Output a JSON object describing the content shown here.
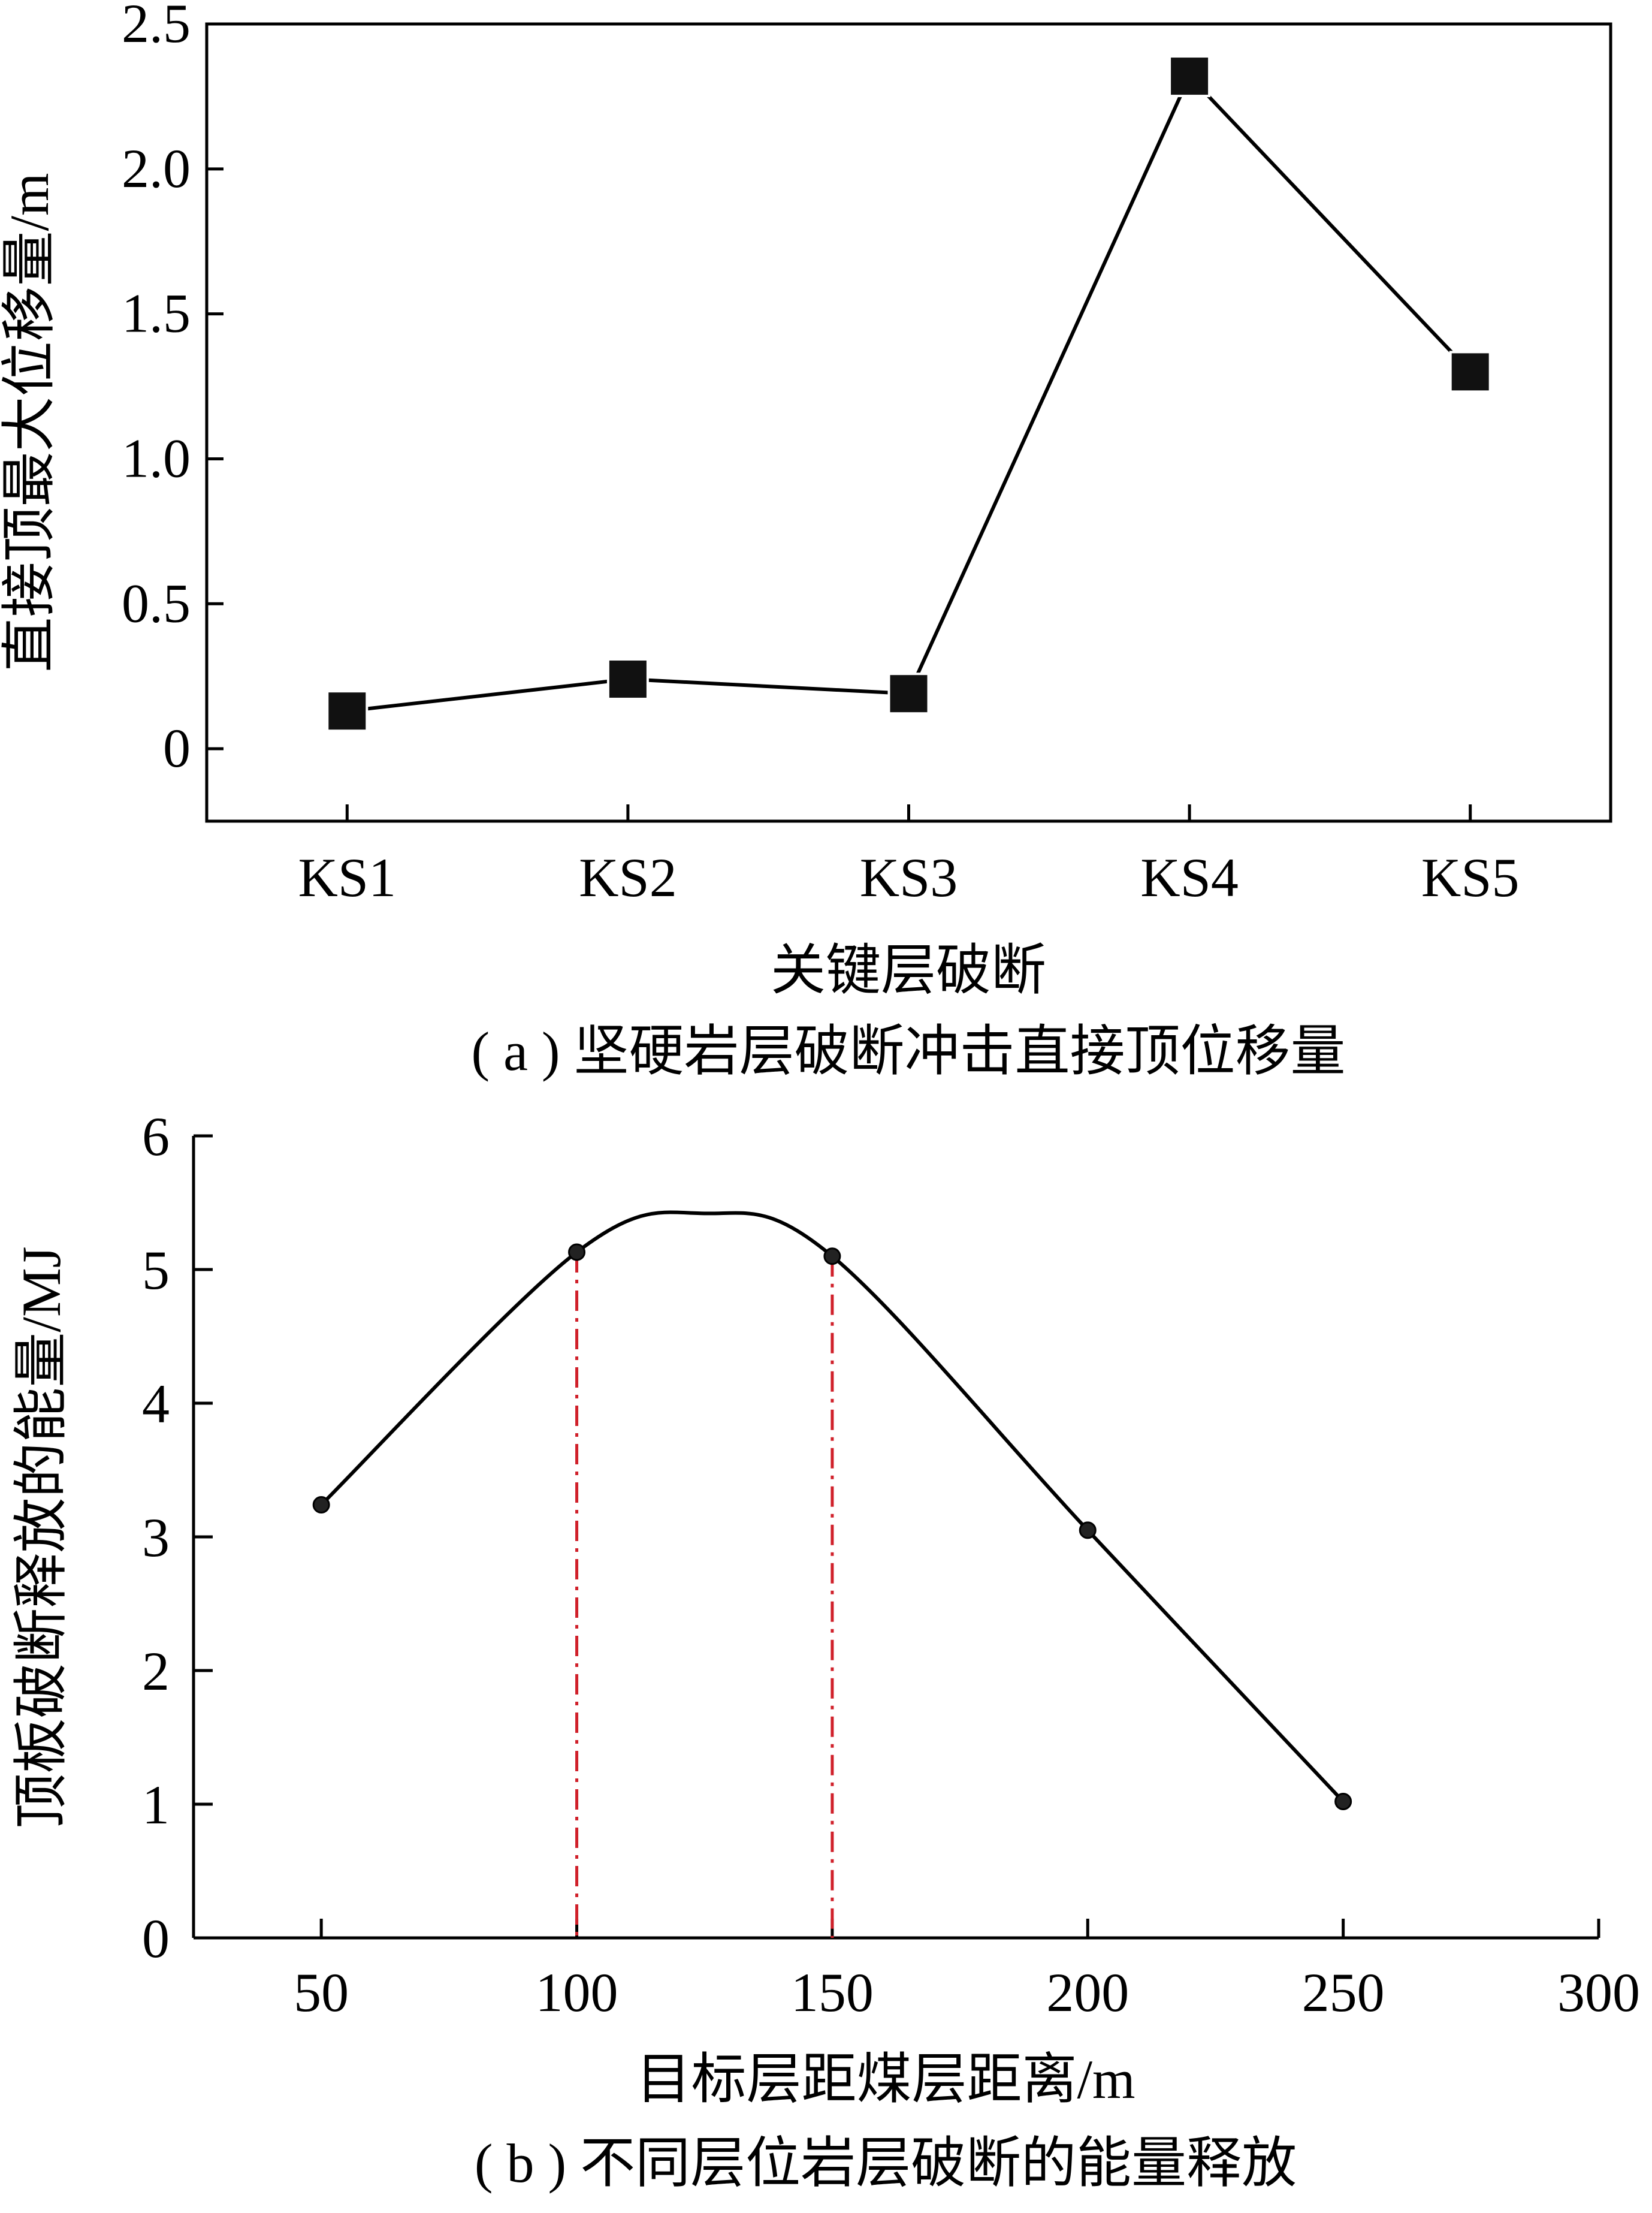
{
  "chart_data": [
    {
      "type": "line",
      "categories": [
        "KS1",
        "KS2",
        "KS3",
        "KS4",
        "KS5"
      ],
      "series": [
        {
          "values": [
            0.13,
            0.24,
            0.19,
            2.32,
            1.3
          ]
        }
      ],
      "xlabel": "关键层破断",
      "ylabel": "直接顶最大位移量/m",
      "ylim": [
        -0.25,
        2.5
      ],
      "yticks": [
        0,
        0.5,
        1.0,
        1.5,
        2.0,
        2.5
      ],
      "ytick_labels": [
        "0",
        "0.5",
        "1.0",
        "1.5",
        "2.0",
        "2.5"
      ],
      "marker": "square",
      "caption": "( a ) 坚硬岩层破断冲击直接顶位移量",
      "grid": false
    },
    {
      "type": "line",
      "x": [
        50,
        100,
        150,
        200,
        250
      ],
      "series": [
        {
          "values": [
            3.24,
            5.13,
            5.1,
            3.05,
            1.02
          ]
        }
      ],
      "curve_peak": {
        "x": 125,
        "y": 5.42
      },
      "reference_lines_x": [
        100,
        150
      ],
      "reference_line_color": "#d0202a",
      "xlabel": "目标层距煤层距离/m",
      "ylabel": "顶板破断释放的能量/MJ",
      "xlim": [
        25,
        300
      ],
      "xticks": [
        50,
        100,
        150,
        200,
        250,
        300
      ],
      "ylim": [
        0,
        6
      ],
      "yticks": [
        0,
        1,
        2,
        3,
        4,
        5,
        6
      ],
      "marker": "circle",
      "smooth": true,
      "caption": "( b ) 不同层位岩层破断的能量释放",
      "grid": false
    }
  ]
}
